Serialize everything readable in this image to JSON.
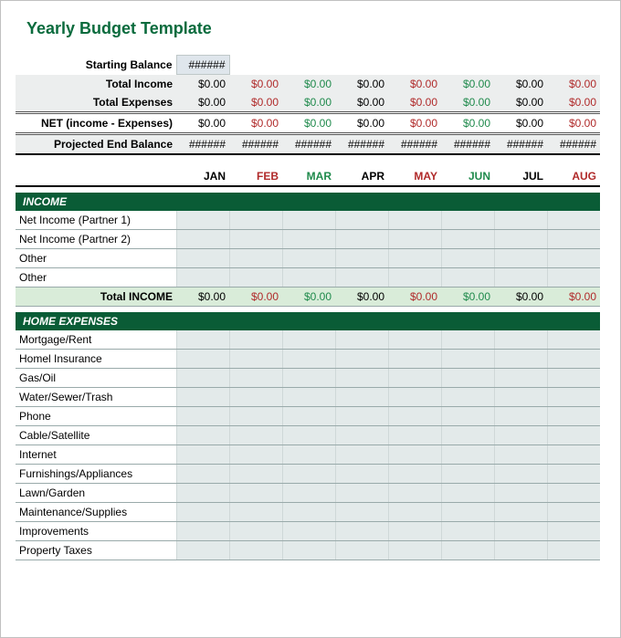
{
  "title": "Yearly Budget Template",
  "colors": {
    "black": "#000000",
    "red": "#b02a2a",
    "green": "#1f8a4c",
    "header_green": "#0a6b3d",
    "section_bg": "#0a5c36"
  },
  "months": [
    {
      "key": "jan",
      "label": "JAN",
      "color": "black"
    },
    {
      "key": "feb",
      "label": "FEB",
      "color": "red"
    },
    {
      "key": "mar",
      "label": "MAR",
      "color": "green"
    },
    {
      "key": "apr",
      "label": "APR",
      "color": "black"
    },
    {
      "key": "may",
      "label": "MAY",
      "color": "red"
    },
    {
      "key": "jun",
      "label": "JUN",
      "color": "green"
    },
    {
      "key": "jul",
      "label": "JUL",
      "color": "black"
    },
    {
      "key": "aug",
      "label": "AUG",
      "color": "red"
    }
  ],
  "hash": "######",
  "summary": {
    "starting_label": "Starting Balance",
    "total_income_label": "Total Income",
    "total_expenses_label": "Total Expenses",
    "net_label": "NET (income - Expenses)",
    "projected_label": "Projected End Balance",
    "zero": "$0.00",
    "color_pattern": [
      "black",
      "red",
      "green",
      "black",
      "red",
      "green",
      "black",
      "red"
    ]
  },
  "income": {
    "header": "INCOME",
    "rows": [
      "Net Income  (Partner 1)",
      "Net Income (Partner 2)",
      "Other",
      "Other"
    ],
    "total_label": "Total INCOME"
  },
  "home_expenses": {
    "header": "HOME EXPENSES",
    "rows": [
      "Mortgage/Rent",
      "Homel Insurance",
      "Gas/Oil",
      "Water/Sewer/Trash",
      "Phone",
      "Cable/Satellite",
      "Internet",
      "Furnishings/Appliances",
      "Lawn/Garden",
      "Maintenance/Supplies",
      "Improvements",
      "Property Taxes"
    ]
  }
}
